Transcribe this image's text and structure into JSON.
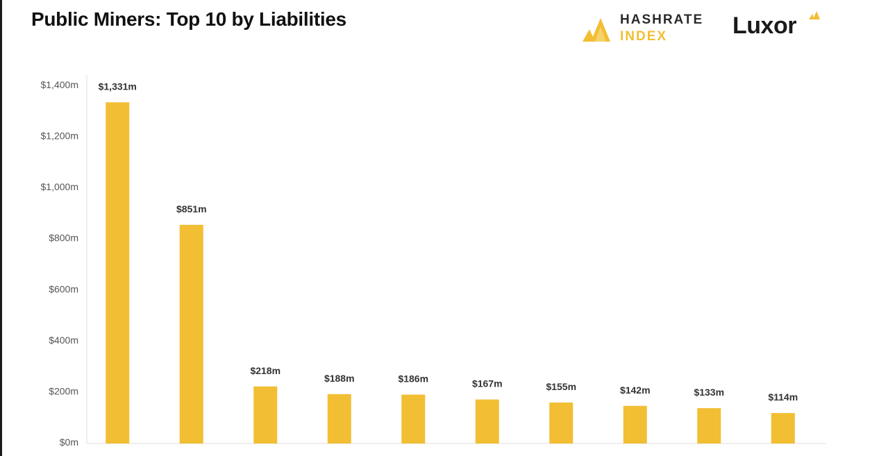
{
  "title": "Public Miners: Top 10 by Liabilities",
  "brands": {
    "hashrate_line1": "HASHRATE",
    "hashrate_line2": "INDEX",
    "luxor": "Luxor"
  },
  "colors": {
    "bar": "#F2BE33",
    "axis": "#DDDDDD",
    "text_dark": "#111111",
    "accent": "#F2BE33"
  },
  "chart_data": {
    "type": "bar",
    "title": "Public Miners: Top 10 by Liabilities",
    "xlabel": "",
    "ylabel": "",
    "ylim": [
      0,
      1400
    ],
    "yticks": [
      0,
      200,
      400,
      600,
      800,
      1000,
      1200,
      1400
    ],
    "ytick_labels": [
      "$0m",
      "$200m",
      "$400m",
      "$600m",
      "$800m",
      "$1,000m",
      "$1,200m",
      "$1,400m"
    ],
    "categories": [
      "",
      "",
      "",
      "",
      "",
      "",
      "",
      "",
      "",
      ""
    ],
    "values": [
      1331,
      851,
      218,
      188,
      186,
      167,
      155,
      142,
      133,
      114
    ],
    "data_labels": [
      "$1,331m",
      "$851m",
      "$218m",
      "$188m",
      "$186m",
      "$167m",
      "$155m",
      "$142m",
      "$133m",
      "$114m"
    ],
    "grid": false
  }
}
